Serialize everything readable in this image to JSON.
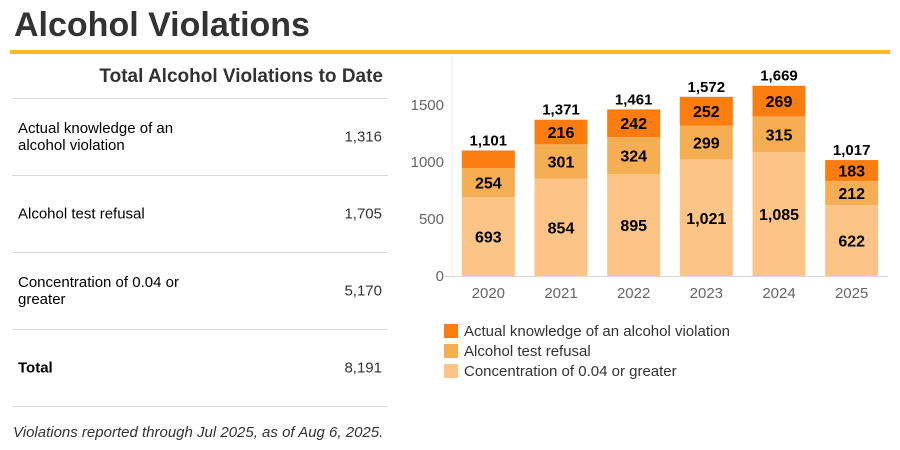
{
  "page": {
    "title": "Alcohol Violations",
    "footnote": "Violations reported through Jul 2025, as of Aug 6, 2025."
  },
  "summary": {
    "title": "Total Alcohol Violations to Date",
    "rows": [
      {
        "label": "Actual knowledge of an alcohol violation",
        "value": "1,316"
      },
      {
        "label": "Alcohol test refusal",
        "value": "1,705"
      },
      {
        "label": "Concentration of 0.04 or greater",
        "value": "5,170"
      },
      {
        "label": "Total",
        "value": "8,191"
      }
    ]
  },
  "chart_data": {
    "type": "bar",
    "stacked": true,
    "title": "",
    "xlabel": "",
    "ylabel": "",
    "categories": [
      "2020",
      "2021",
      "2022",
      "2023",
      "2024",
      "2025"
    ],
    "series": [
      {
        "name": "Concentration of 0.04 or greater",
        "color": "#fdc488",
        "values": [
          693,
          854,
          895,
          1021,
          1085,
          622
        ],
        "labels": [
          "693",
          "854",
          "895",
          "1,021",
          "1,085",
          "622"
        ]
      },
      {
        "name": "Alcohol test refusal",
        "color": "#f6ae55",
        "values": [
          254,
          301,
          324,
          299,
          315,
          212
        ],
        "labels": [
          "254",
          "301",
          "324",
          "299",
          "315",
          "212"
        ]
      },
      {
        "name": "Actual knowledge of an alcohol violation",
        "color": "#fb7c0f",
        "values": [
          154,
          216,
          242,
          252,
          269,
          183
        ],
        "labels": [
          "",
          "216",
          "242",
          "252",
          "269",
          "183"
        ]
      }
    ],
    "totals": [
      1101,
      1371,
      1461,
      1572,
      1669,
      1017
    ],
    "total_labels": [
      "1,101",
      "1,371",
      "1,461",
      "1,572",
      "1,669",
      "1,017"
    ],
    "yticks": [
      0,
      500,
      1000,
      1500
    ],
    "ylim": [
      0,
      1900
    ],
    "grid": false,
    "legend": {
      "position": "bottom",
      "order": [
        "Actual knowledge of an alcohol violation",
        "Alcohol test refusal",
        "Concentration of 0.04 or greater"
      ]
    }
  }
}
